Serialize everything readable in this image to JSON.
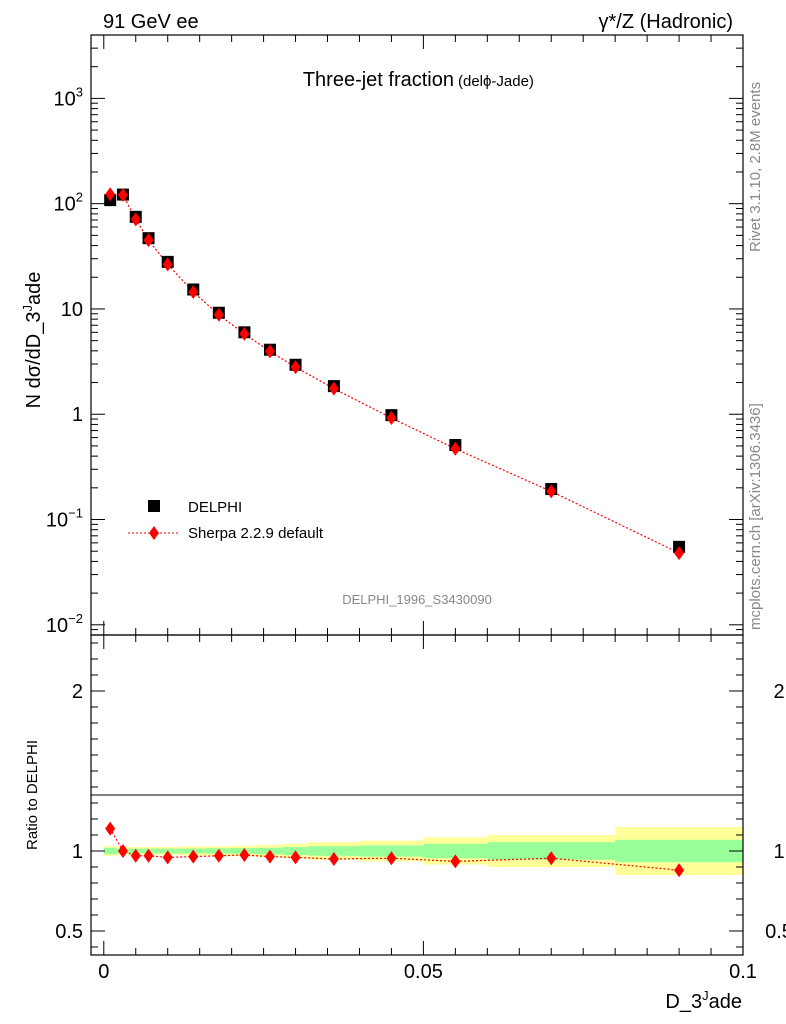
{
  "header": {
    "left": "91 GeV ee",
    "right": "γ*/Z (Hadronic)"
  },
  "side_text": {
    "rivet": "Rivet 3.1.10,  2.8M events",
    "mcplots": "mcplots.cern.ch [arXiv:1306.3436]"
  },
  "chart_data": [
    {
      "type": "scatter",
      "title_main": "Three-jet fraction",
      "title_sub": "(delϕ-Jade)",
      "watermark": "DELPHI_1996_S3430090",
      "ylabel": "N dσ/dD_3^Jade",
      "yscale": "log",
      "ylim": [
        0.008,
        4000
      ],
      "xlim": [
        -0.002,
        0.1
      ],
      "y_tick_labels": [
        "10^-2",
        "10^-1",
        "1",
        "10",
        "10^2",
        "10^3"
      ],
      "legend_position": "lower-left",
      "series": [
        {
          "name": "DELPHI",
          "marker": "square",
          "color": "#000000",
          "x": [
            0.001,
            0.003,
            0.005,
            0.007,
            0.01,
            0.014,
            0.018,
            0.022,
            0.026,
            0.03,
            0.036,
            0.045,
            0.055,
            0.07,
            0.09
          ],
          "y": [
            108,
            122,
            75,
            47,
            28,
            15.3,
            9.2,
            6.0,
            4.1,
            2.95,
            1.85,
            0.98,
            0.51,
            0.195,
            0.055
          ]
        },
        {
          "name": "Sherpa 2.2.9 default",
          "marker": "diamond",
          "line": "dotted",
          "color": "#ff0000",
          "x": [
            0.001,
            0.003,
            0.005,
            0.007,
            0.01,
            0.014,
            0.018,
            0.022,
            0.026,
            0.03,
            0.036,
            0.045,
            0.055,
            0.07,
            0.09
          ],
          "y": [
            123,
            121,
            71,
            45,
            26.5,
            14.5,
            8.8,
            5.8,
            3.95,
            2.8,
            1.75,
            0.92,
            0.47,
            0.185,
            0.048
          ]
        }
      ]
    },
    {
      "type": "scatter",
      "ylabel": "Ratio to DELPHI",
      "xlabel": "D_3^Jade",
      "ylim": [
        0.35,
        2.35
      ],
      "xlim": [
        -0.002,
        0.1
      ],
      "y_tick_labels": [
        "0.5",
        "1",
        "2"
      ],
      "x_tick_labels": [
        "0",
        "0.05",
        "0.1"
      ],
      "x_ticks": [
        0,
        0.05,
        0.1
      ],
      "bands": {
        "bin_edges": [
          0,
          0.002,
          0.004,
          0.006,
          0.008,
          0.012,
          0.016,
          0.02,
          0.024,
          0.028,
          0.032,
          0.04,
          0.05,
          0.06,
          0.08,
          0.1
        ],
        "stat_half": [
          0.02,
          0.015,
          0.015,
          0.015,
          0.015,
          0.015,
          0.017,
          0.018,
          0.02,
          0.025,
          0.03,
          0.035,
          0.045,
          0.055,
          0.07
        ],
        "total_half": [
          0.03,
          0.025,
          0.025,
          0.025,
          0.025,
          0.028,
          0.03,
          0.033,
          0.038,
          0.045,
          0.055,
          0.065,
          0.085,
          0.1,
          0.15
        ],
        "stat_color": "#99ff99",
        "total_color": "#ffff99"
      },
      "series": [
        {
          "name": "Sherpa 2.2.9 default",
          "marker": "diamond",
          "color": "#ff0000",
          "x": [
            0.001,
            0.003,
            0.005,
            0.007,
            0.01,
            0.014,
            0.018,
            0.022,
            0.026,
            0.03,
            0.036,
            0.045,
            0.055,
            0.07,
            0.09
          ],
          "y": [
            1.14,
            1.0,
            0.97,
            0.97,
            0.96,
            0.965,
            0.97,
            0.975,
            0.965,
            0.96,
            0.95,
            0.955,
            0.935,
            0.955,
            0.88
          ]
        }
      ]
    }
  ]
}
